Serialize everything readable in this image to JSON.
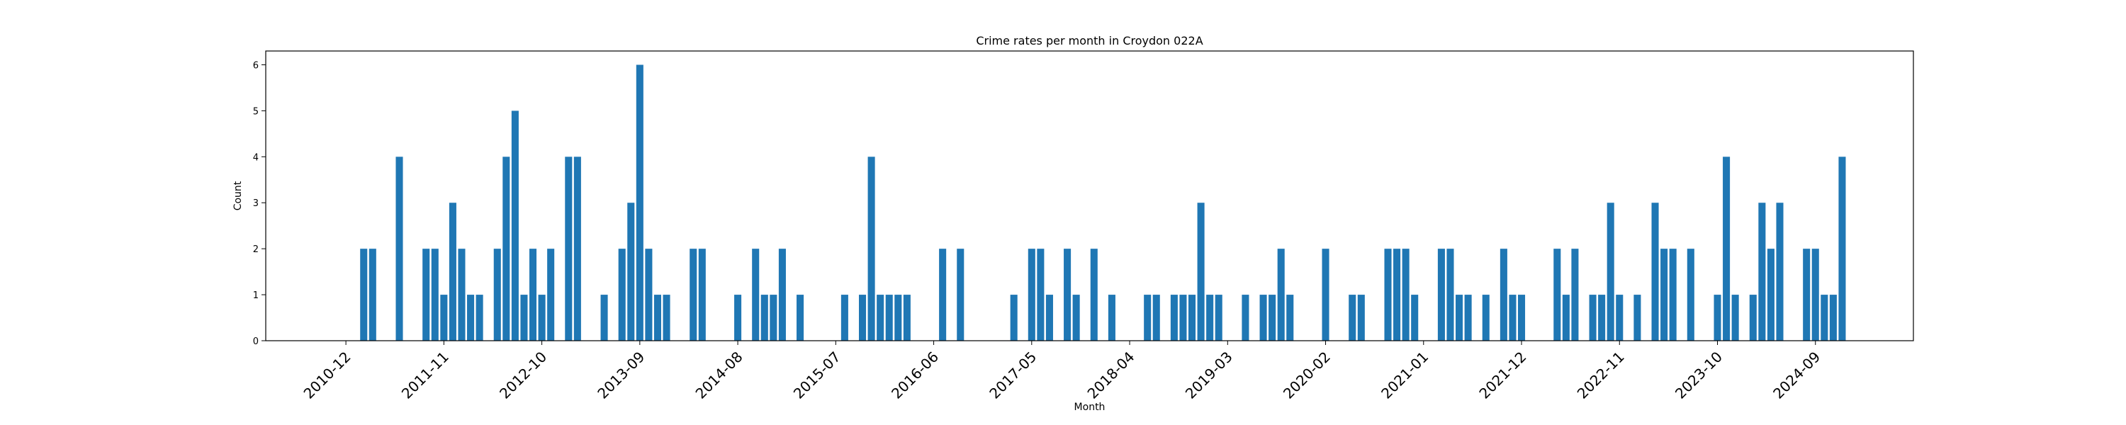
{
  "chart_data": {
    "type": "bar",
    "title": "Crime rates per month in Croydon 022A",
    "xlabel": "Month",
    "ylabel": "Count",
    "ylim": [
      0,
      6.3
    ],
    "yticks": [
      0,
      1,
      2,
      3,
      4,
      5,
      6
    ],
    "x_range": [
      "2010-03",
      "2025-08"
    ],
    "xticks": [
      "2010-12",
      "2011-11",
      "2012-10",
      "2013-09",
      "2014-08",
      "2015-07",
      "2016-06",
      "2017-05",
      "2018-04",
      "2019-03",
      "2020-02",
      "2021-01",
      "2021-12",
      "2022-11",
      "2023-10",
      "2024-09"
    ],
    "bar_color": "#1f77b4",
    "grid": false,
    "categories": [
      "2011-02",
      "2011-03",
      "2011-06",
      "2011-09",
      "2011-10",
      "2011-11",
      "2011-12",
      "2012-01",
      "2012-02",
      "2012-03",
      "2012-05",
      "2012-06",
      "2012-07",
      "2012-08",
      "2012-09",
      "2012-10",
      "2012-11",
      "2013-01",
      "2013-02",
      "2013-05",
      "2013-07",
      "2013-08",
      "2013-09",
      "2013-10",
      "2013-11",
      "2013-12",
      "2014-03",
      "2014-04",
      "2014-08",
      "2014-10",
      "2014-11",
      "2014-12",
      "2015-01",
      "2015-03",
      "2015-08",
      "2015-10",
      "2015-11",
      "2015-12",
      "2016-01",
      "2016-02",
      "2016-03",
      "2016-07",
      "2016-09",
      "2017-03",
      "2017-05",
      "2017-06",
      "2017-07",
      "2017-09",
      "2017-10",
      "2017-12",
      "2018-02",
      "2018-06",
      "2018-07",
      "2018-09",
      "2018-10",
      "2018-11",
      "2018-12",
      "2019-01",
      "2019-02",
      "2019-05",
      "2019-07",
      "2019-08",
      "2019-09",
      "2019-10",
      "2020-02",
      "2020-05",
      "2020-06",
      "2020-09",
      "2020-10",
      "2020-11",
      "2020-12",
      "2021-03",
      "2021-04",
      "2021-05",
      "2021-06",
      "2021-08",
      "2021-10",
      "2021-11",
      "2021-12",
      "2022-04",
      "2022-05",
      "2022-06",
      "2022-08",
      "2022-09",
      "2022-10",
      "2022-11",
      "2023-01",
      "2023-03",
      "2023-04",
      "2023-05",
      "2023-07",
      "2023-10",
      "2023-11",
      "2023-12",
      "2024-02",
      "2024-03",
      "2024-04",
      "2024-05",
      "2024-08",
      "2024-09",
      "2024-10",
      "2024-11",
      "2024-12"
    ],
    "values": [
      2,
      2,
      4,
      2,
      2,
      1,
      3,
      2,
      1,
      1,
      2,
      4,
      5,
      1,
      2,
      1,
      2,
      4,
      4,
      1,
      2,
      3,
      6,
      2,
      1,
      1,
      2,
      2,
      1,
      2,
      1,
      1,
      2,
      1,
      1,
      1,
      4,
      1,
      1,
      1,
      1,
      2,
      2,
      1,
      2,
      2,
      1,
      2,
      1,
      2,
      1,
      1,
      1,
      1,
      1,
      1,
      3,
      1,
      1,
      1,
      1,
      1,
      2,
      1,
      2,
      1,
      1,
      2,
      2,
      2,
      1,
      2,
      2,
      1,
      1,
      1,
      2,
      1,
      1,
      2,
      1,
      2,
      1,
      1,
      3,
      1,
      1,
      3,
      2,
      2,
      2,
      1,
      4,
      1,
      1,
      3,
      2,
      3,
      2,
      2,
      1,
      1,
      4
    ]
  }
}
